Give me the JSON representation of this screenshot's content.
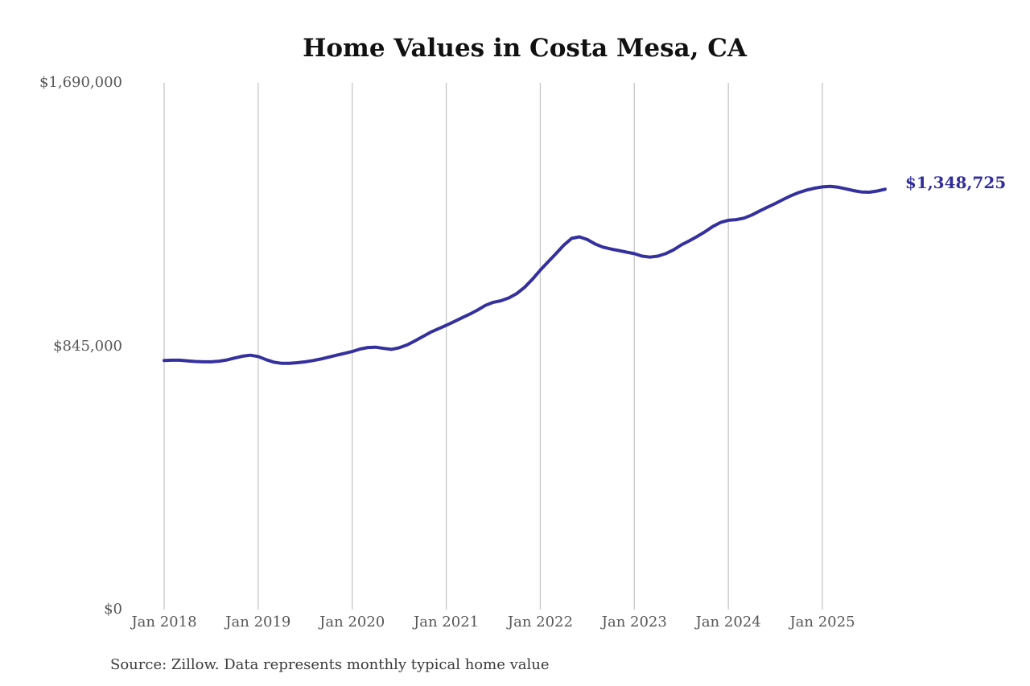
{
  "chart_data": {
    "type": "line",
    "title": "Home Values in Costa Mesa, CA",
    "source_note": "Source: Zillow. Data represents monthly typical home value",
    "end_label": "$1,348,725",
    "latest_value": 1348725,
    "ylim": [
      0,
      1690000
    ],
    "grid": "vertical-only",
    "legend": "none",
    "line_color": "#34309e",
    "gridline_color": "#c7c7c7",
    "tick_text_color": "#575757",
    "y_ticks": [
      {
        "value": 1690000,
        "label": "$1,690,000"
      },
      {
        "value": 845000,
        "label": "$845,000"
      },
      {
        "value": 0,
        "label": "$0"
      }
    ],
    "x_ticks": [
      {
        "index": 0,
        "label": "Jan 2018"
      },
      {
        "index": 12,
        "label": "Jan 2019"
      },
      {
        "index": 24,
        "label": "Jan 2020"
      },
      {
        "index": 36,
        "label": "Jan 2021"
      },
      {
        "index": 48,
        "label": "Jan 2022"
      },
      {
        "index": 60,
        "label": "Jan 2023"
      },
      {
        "index": 72,
        "label": "Jan 2024"
      },
      {
        "index": 84,
        "label": "Jan 2025"
      }
    ],
    "x": [
      "2018-01",
      "2018-02",
      "2018-03",
      "2018-04",
      "2018-05",
      "2018-06",
      "2018-07",
      "2018-08",
      "2018-09",
      "2018-10",
      "2018-11",
      "2018-12",
      "2019-01",
      "2019-02",
      "2019-03",
      "2019-04",
      "2019-05",
      "2019-06",
      "2019-07",
      "2019-08",
      "2019-09",
      "2019-10",
      "2019-11",
      "2019-12",
      "2020-01",
      "2020-02",
      "2020-03",
      "2020-04",
      "2020-05",
      "2020-06",
      "2020-07",
      "2020-08",
      "2020-09",
      "2020-10",
      "2020-11",
      "2020-12",
      "2021-01",
      "2021-02",
      "2021-03",
      "2021-04",
      "2021-05",
      "2021-06",
      "2021-07",
      "2021-08",
      "2021-09",
      "2021-10",
      "2021-11",
      "2021-12",
      "2022-01",
      "2022-02",
      "2022-03",
      "2022-04",
      "2022-05",
      "2022-06",
      "2022-07",
      "2022-08",
      "2022-09",
      "2022-10",
      "2022-11",
      "2022-12",
      "2023-01",
      "2023-02",
      "2023-03",
      "2023-04",
      "2023-05",
      "2023-06",
      "2023-07",
      "2023-08",
      "2023-09",
      "2023-10",
      "2023-11",
      "2023-12",
      "2024-01",
      "2024-02",
      "2024-03",
      "2024-04",
      "2024-05",
      "2024-06",
      "2024-07",
      "2024-08",
      "2024-09",
      "2024-10",
      "2024-11",
      "2024-12",
      "2025-01",
      "2025-02",
      "2025-03",
      "2025-04",
      "2025-05",
      "2025-06",
      "2025-07",
      "2025-08",
      "2025-09"
    ],
    "values": [
      799000,
      800000,
      800000,
      798000,
      796000,
      795000,
      795000,
      797000,
      801000,
      807000,
      813000,
      816000,
      812000,
      802000,
      794000,
      790000,
      790000,
      792000,
      795000,
      799000,
      804000,
      810000,
      816000,
      822000,
      828000,
      836000,
      841000,
      842000,
      838000,
      835000,
      840000,
      849000,
      862000,
      876000,
      890000,
      901000,
      912000,
      924000,
      936000,
      948000,
      961000,
      976000,
      986000,
      991000,
      1000000,
      1014000,
      1034000,
      1060000,
      1089000,
      1116000,
      1142000,
      1169000,
      1191000,
      1196000,
      1187000,
      1173000,
      1163000,
      1157000,
      1152000,
      1147000,
      1142000,
      1134000,
      1131000,
      1134000,
      1142000,
      1154000,
      1170000,
      1183000,
      1197000,
      1212000,
      1229000,
      1242000,
      1249000,
      1251000,
      1256000,
      1266000,
      1279000,
      1291000,
      1303000,
      1316000,
      1328000,
      1338000,
      1346000,
      1352000,
      1356000,
      1358000,
      1355000,
      1350000,
      1344000,
      1340000,
      1339000,
      1343000,
      1348725
    ]
  }
}
